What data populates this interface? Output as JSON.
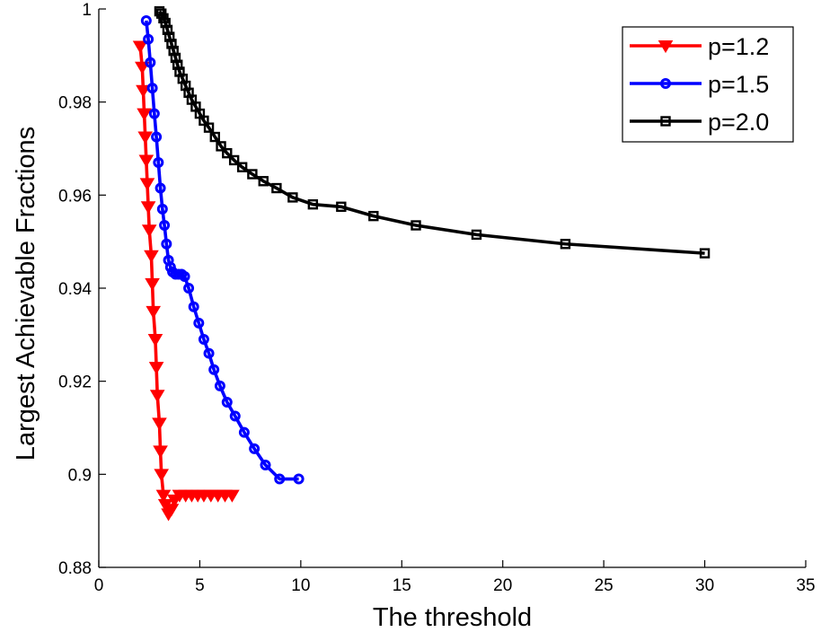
{
  "chart_data": {
    "type": "line",
    "title": "",
    "xlabel": "The threshold",
    "ylabel": "Largest Achievable Fractions",
    "xlim": [
      0,
      35
    ],
    "ylim": [
      0.88,
      1.0
    ],
    "xticks": [
      "0",
      "5",
      "10",
      "15",
      "20",
      "25",
      "30",
      "35"
    ],
    "yticks": [
      "0.88",
      "0.9",
      "0.92",
      "0.94",
      "0.96",
      "0.98",
      "1"
    ],
    "grid": false,
    "legend_position": "top-right",
    "series": [
      {
        "name": "p=1.2",
        "color": "#ff0000",
        "marker": "triangle-down",
        "points": [
          [
            2.05,
            0.992
          ],
          [
            2.15,
            0.9875
          ],
          [
            2.2,
            0.9825
          ],
          [
            2.25,
            0.9775
          ],
          [
            2.3,
            0.9725
          ],
          [
            2.35,
            0.9675
          ],
          [
            2.4,
            0.9625
          ],
          [
            2.45,
            0.9575
          ],
          [
            2.5,
            0.9525
          ],
          [
            2.6,
            0.947
          ],
          [
            2.65,
            0.941
          ],
          [
            2.7,
            0.935
          ],
          [
            2.8,
            0.929
          ],
          [
            2.85,
            0.923
          ],
          [
            2.9,
            0.917
          ],
          [
            3.0,
            0.911
          ],
          [
            3.05,
            0.905
          ],
          [
            3.1,
            0.9
          ],
          [
            3.2,
            0.8955
          ],
          [
            3.3,
            0.8935
          ],
          [
            3.45,
            0.8915
          ],
          [
            3.6,
            0.8925
          ],
          [
            3.75,
            0.8945
          ],
          [
            4.0,
            0.8955
          ],
          [
            4.3,
            0.8955
          ],
          [
            4.6,
            0.8955
          ],
          [
            4.9,
            0.8955
          ],
          [
            5.2,
            0.8955
          ],
          [
            5.55,
            0.8955
          ],
          [
            5.9,
            0.8955
          ],
          [
            6.25,
            0.8955
          ],
          [
            6.6,
            0.8955
          ]
        ]
      },
      {
        "name": "p=1.5",
        "color": "#0000ff",
        "marker": "circle",
        "points": [
          [
            2.35,
            0.9975
          ],
          [
            2.45,
            0.9935
          ],
          [
            2.55,
            0.9885
          ],
          [
            2.65,
            0.983
          ],
          [
            2.75,
            0.9775
          ],
          [
            2.85,
            0.9725
          ],
          [
            2.95,
            0.967
          ],
          [
            3.05,
            0.9615
          ],
          [
            3.15,
            0.957
          ],
          [
            3.25,
            0.9535
          ],
          [
            3.35,
            0.9495
          ],
          [
            3.45,
            0.946
          ],
          [
            3.55,
            0.9445
          ],
          [
            3.65,
            0.9435
          ],
          [
            3.8,
            0.943
          ],
          [
            3.95,
            0.943
          ],
          [
            4.1,
            0.943
          ],
          [
            4.25,
            0.9425
          ],
          [
            4.45,
            0.94
          ],
          [
            4.7,
            0.936
          ],
          [
            4.95,
            0.9325
          ],
          [
            5.2,
            0.929
          ],
          [
            5.45,
            0.926
          ],
          [
            5.7,
            0.9225
          ],
          [
            6.0,
            0.919
          ],
          [
            6.35,
            0.9155
          ],
          [
            6.75,
            0.9125
          ],
          [
            7.2,
            0.909
          ],
          [
            7.7,
            0.9055
          ],
          [
            8.25,
            0.902
          ],
          [
            8.95,
            0.899
          ],
          [
            9.9,
            0.899
          ]
        ]
      },
      {
        "name": "p=2.0",
        "color": "#000000",
        "marker": "square",
        "points": [
          [
            3.0,
            0.9995
          ],
          [
            3.1,
            0.999
          ],
          [
            3.2,
            0.998
          ],
          [
            3.3,
            0.997
          ],
          [
            3.4,
            0.9955
          ],
          [
            3.5,
            0.994
          ],
          [
            3.6,
            0.9925
          ],
          [
            3.7,
            0.991
          ],
          [
            3.8,
            0.9895
          ],
          [
            3.9,
            0.988
          ],
          [
            4.0,
            0.9865
          ],
          [
            4.15,
            0.985
          ],
          [
            4.3,
            0.9835
          ],
          [
            4.45,
            0.982
          ],
          [
            4.6,
            0.9805
          ],
          [
            4.8,
            0.979
          ],
          [
            5.0,
            0.9775
          ],
          [
            5.2,
            0.976
          ],
          [
            5.45,
            0.9745
          ],
          [
            5.75,
            0.9725
          ],
          [
            6.05,
            0.9705
          ],
          [
            6.35,
            0.969
          ],
          [
            6.7,
            0.9675
          ],
          [
            7.1,
            0.966
          ],
          [
            7.6,
            0.9645
          ],
          [
            8.15,
            0.963
          ],
          [
            8.8,
            0.9615
          ],
          [
            9.6,
            0.9595
          ],
          [
            10.6,
            0.958
          ],
          [
            12.0,
            0.9575
          ],
          [
            13.6,
            0.9555
          ],
          [
            15.7,
            0.9535
          ],
          [
            18.7,
            0.9515
          ],
          [
            23.1,
            0.9495
          ],
          [
            30.0,
            0.9475
          ]
        ]
      }
    ]
  }
}
